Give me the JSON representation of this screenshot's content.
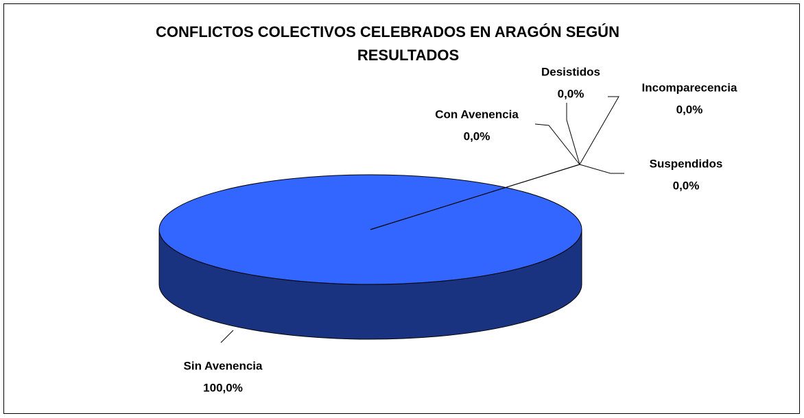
{
  "chart_data": {
    "type": "pie3d",
    "title": "CONFLICTOS COLECTIVOS CELEBRADOS EN ARAGÓN SEGÚN RESULTADOS",
    "categories": [
      "Sin Avenencia",
      "Con Avenencia",
      "Desistidos",
      "Incomparecencia",
      "Suspendidos"
    ],
    "values": [
      100,
      0,
      0,
      0,
      0
    ],
    "value_labels": [
      "100,0%",
      "0,0%",
      "0,0%",
      "0,0%",
      "0,0%"
    ],
    "colors": [
      "#3366ff",
      "#993366",
      "#ffffcc",
      "#ccffff",
      "#800000"
    ]
  }
}
